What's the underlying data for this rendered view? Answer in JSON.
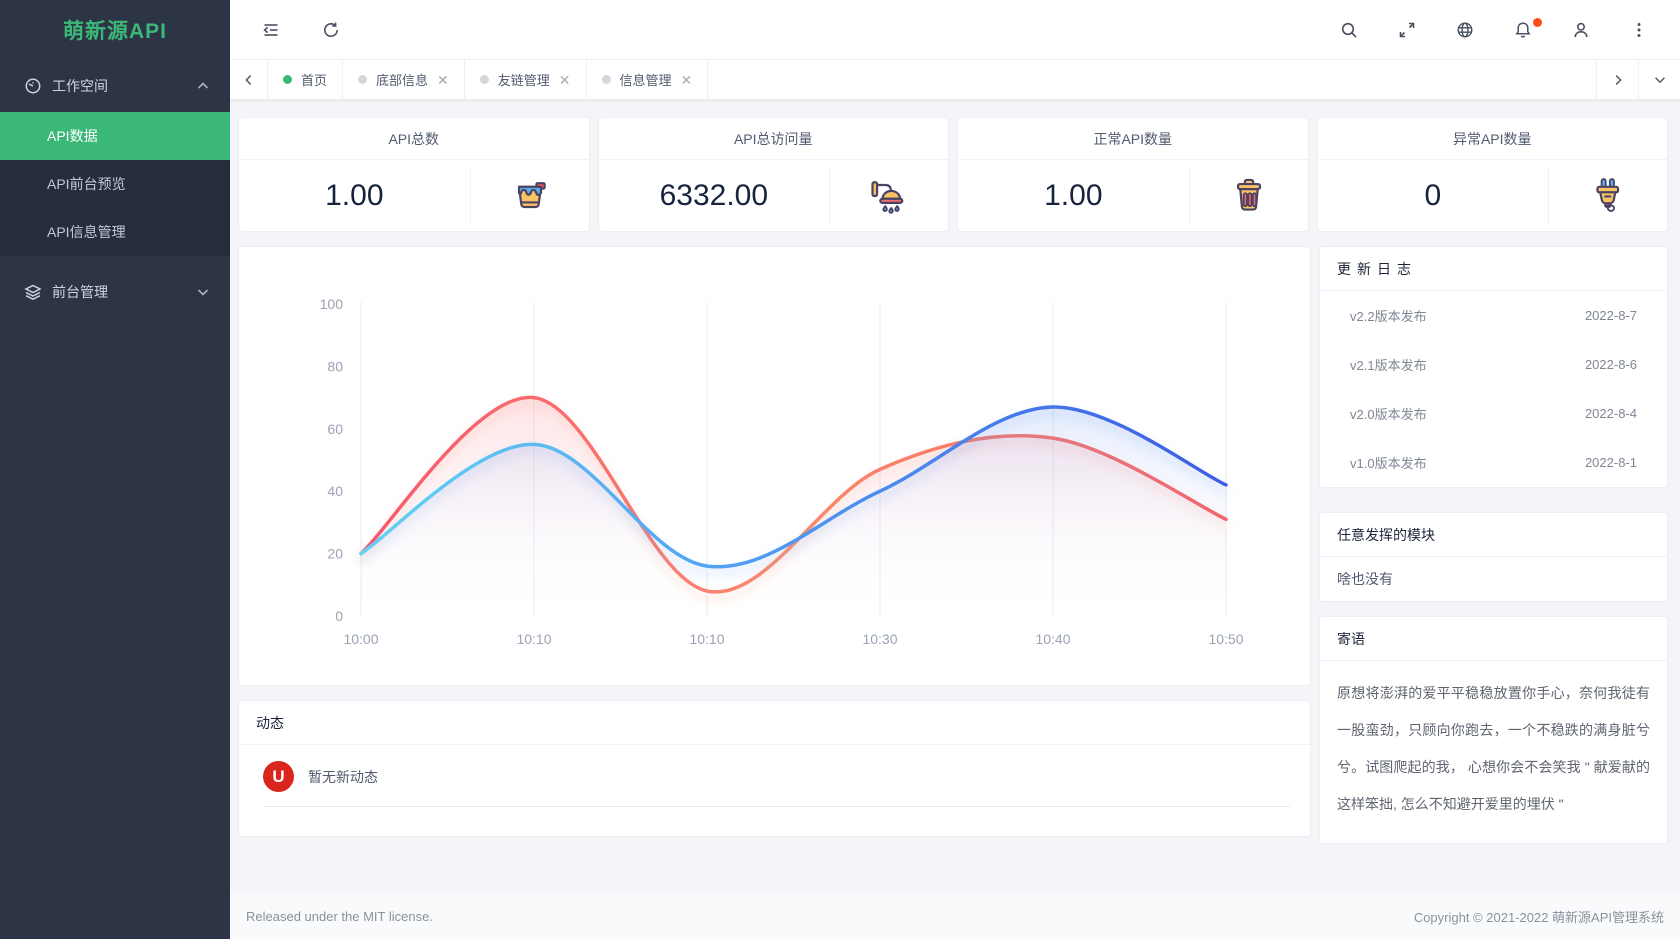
{
  "sidebar": {
    "logo": "萌新源API",
    "workspace_group": {
      "label": "工作空间"
    },
    "workspace_items": [
      {
        "label": "API数据",
        "active": true
      },
      {
        "label": "API前台预览",
        "active": false
      },
      {
        "label": "API信息管理",
        "active": false
      }
    ],
    "frontend_group": {
      "label": "前台管理"
    }
  },
  "topbar": {
    "left_icons": [
      "fold-icon",
      "refresh-icon"
    ],
    "right_icons": [
      "search-icon",
      "fullscreen-icon",
      "globe-icon",
      "bell-icon",
      "user-icon",
      "kebab-icon"
    ]
  },
  "tabbar": {
    "tabs": [
      {
        "label": "首页",
        "active": true,
        "closable": false
      },
      {
        "label": "底部信息",
        "active": false,
        "closable": true
      },
      {
        "label": "友链管理",
        "active": false,
        "closable": true
      },
      {
        "label": "信息管理",
        "active": false,
        "closable": true
      }
    ],
    "close_glyph": "✕"
  },
  "stat_cards": [
    {
      "title": "API总数",
      "value": "1.00",
      "icon": "paint-bucket-icon"
    },
    {
      "title": "API总访问量",
      "value": "6332.00",
      "icon": "shower-icon"
    },
    {
      "title": "正常API数量",
      "value": "1.00",
      "icon": "trash-bin-icon"
    },
    {
      "title": "异常API数量",
      "value": "0",
      "icon": "power-plug-icon"
    }
  ],
  "chart_data": {
    "type": "area",
    "categories": [
      "10:00",
      "10:10",
      "10:10",
      "10:30",
      "10:40",
      "10:50"
    ],
    "y_ticks": [
      0,
      20,
      40,
      60,
      80,
      100
    ],
    "ylim": [
      0,
      100
    ],
    "grid": "vertical-lines-only",
    "legend": "none",
    "series": [
      {
        "name": "red-series",
        "values": [
          20,
          70,
          8,
          47,
          57,
          31
        ],
        "line_colors": [
          "#f8566e",
          "#fb8a6c",
          "#f45f63"
        ],
        "area_top_color": "rgba(247,100,110,0.18)"
      },
      {
        "name": "blue-series",
        "values": [
          20,
          55,
          16,
          40,
          67,
          42
        ],
        "line_colors": [
          "#63d2f3",
          "#4f97f2",
          "#3d5ce4"
        ],
        "area_top_color": "rgba(98,136,240,0.16)"
      }
    ]
  },
  "feed_panel": {
    "title": "动态",
    "empty_text": "暂无新动态",
    "avatar_letter": "U"
  },
  "update_log": {
    "title": "更新日志",
    "items": [
      {
        "name": "v2.2版本发布",
        "date": "2022-8-7"
      },
      {
        "name": "v2.1版本发布",
        "date": "2022-8-6"
      },
      {
        "name": "v2.0版本发布",
        "date": "2022-8-4"
      },
      {
        "name": "v1.0版本发布",
        "date": "2022-8-1"
      }
    ]
  },
  "module_panel": {
    "title": "任意发挥的模块",
    "body": "啥也没有"
  },
  "message_panel": {
    "title": "寄语",
    "body": "原想将澎湃的爱平平稳稳放置你手心，奈何我徒有一股蛮劲，只顾向你跑去，一个不稳跌的满身脏兮兮。试图爬起的我， 心想你会不会笑我 \" 献爱献的这样笨拙, 怎么不知避开爱里的埋伏 \""
  },
  "footer": {
    "left": "Released under the MIT license.",
    "right": "Copyright © 2021-2022 萌新源API管理系统"
  },
  "colors": {
    "accent_green": "#3bb878",
    "sidebar_bg": "#2d3445",
    "badge_orange": "#ff4d17",
    "avatar_red": "#da251c",
    "red_line": "#f4605f",
    "blue_line": "#3d5ce4"
  }
}
